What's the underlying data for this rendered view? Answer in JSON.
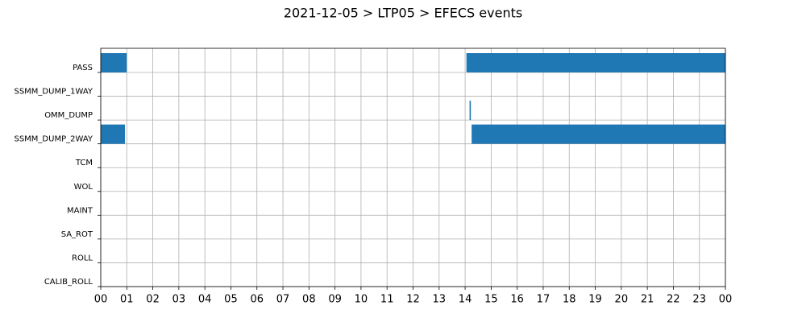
{
  "chart_data": {
    "type": "timeline",
    "title": "2021-12-05 > LTP05 > EFECS events",
    "categories": [
      "PASS",
      "SSMM_DUMP_1WAY",
      "OMM_DUMP",
      "SSMM_DUMP_2WAY",
      "TCM",
      "WOL",
      "MAINT",
      "SA_ROT",
      "ROLL",
      "CALIB_ROLL"
    ],
    "events": [
      [
        [
          0,
          1
        ],
        [
          14.05,
          24
        ]
      ],
      [],
      [
        [
          14.17,
          14.22
        ]
      ],
      [
        [
          0,
          0.93
        ],
        [
          14.25,
          24
        ]
      ],
      [],
      [],
      [],
      [],
      [],
      []
    ],
    "color": "#1f77b4",
    "grid": true,
    "xlim": [
      0,
      24
    ],
    "xticks": [
      {
        "value": 0,
        "label": "00"
      },
      {
        "value": 1,
        "label": "01"
      },
      {
        "value": 2,
        "label": "02"
      },
      {
        "value": 3,
        "label": "03"
      },
      {
        "value": 4,
        "label": "04"
      },
      {
        "value": 5,
        "label": "05"
      },
      {
        "value": 6,
        "label": "06"
      },
      {
        "value": 7,
        "label": "07"
      },
      {
        "value": 8,
        "label": "08"
      },
      {
        "value": 9,
        "label": "09"
      },
      {
        "value": 10,
        "label": "10"
      },
      {
        "value": 11,
        "label": "11"
      },
      {
        "value": 12,
        "label": "12"
      },
      {
        "value": 13,
        "label": "13"
      },
      {
        "value": 14,
        "label": "14"
      },
      {
        "value": 15,
        "label": "15"
      },
      {
        "value": 16,
        "label": "16"
      },
      {
        "value": 17,
        "label": "17"
      },
      {
        "value": 18,
        "label": "18"
      },
      {
        "value": 19,
        "label": "19"
      },
      {
        "value": 20,
        "label": "20"
      },
      {
        "value": 21,
        "label": "21"
      },
      {
        "value": 22,
        "label": "22"
      },
      {
        "value": 23,
        "label": "23"
      },
      {
        "value": 24,
        "label": "00"
      }
    ]
  }
}
